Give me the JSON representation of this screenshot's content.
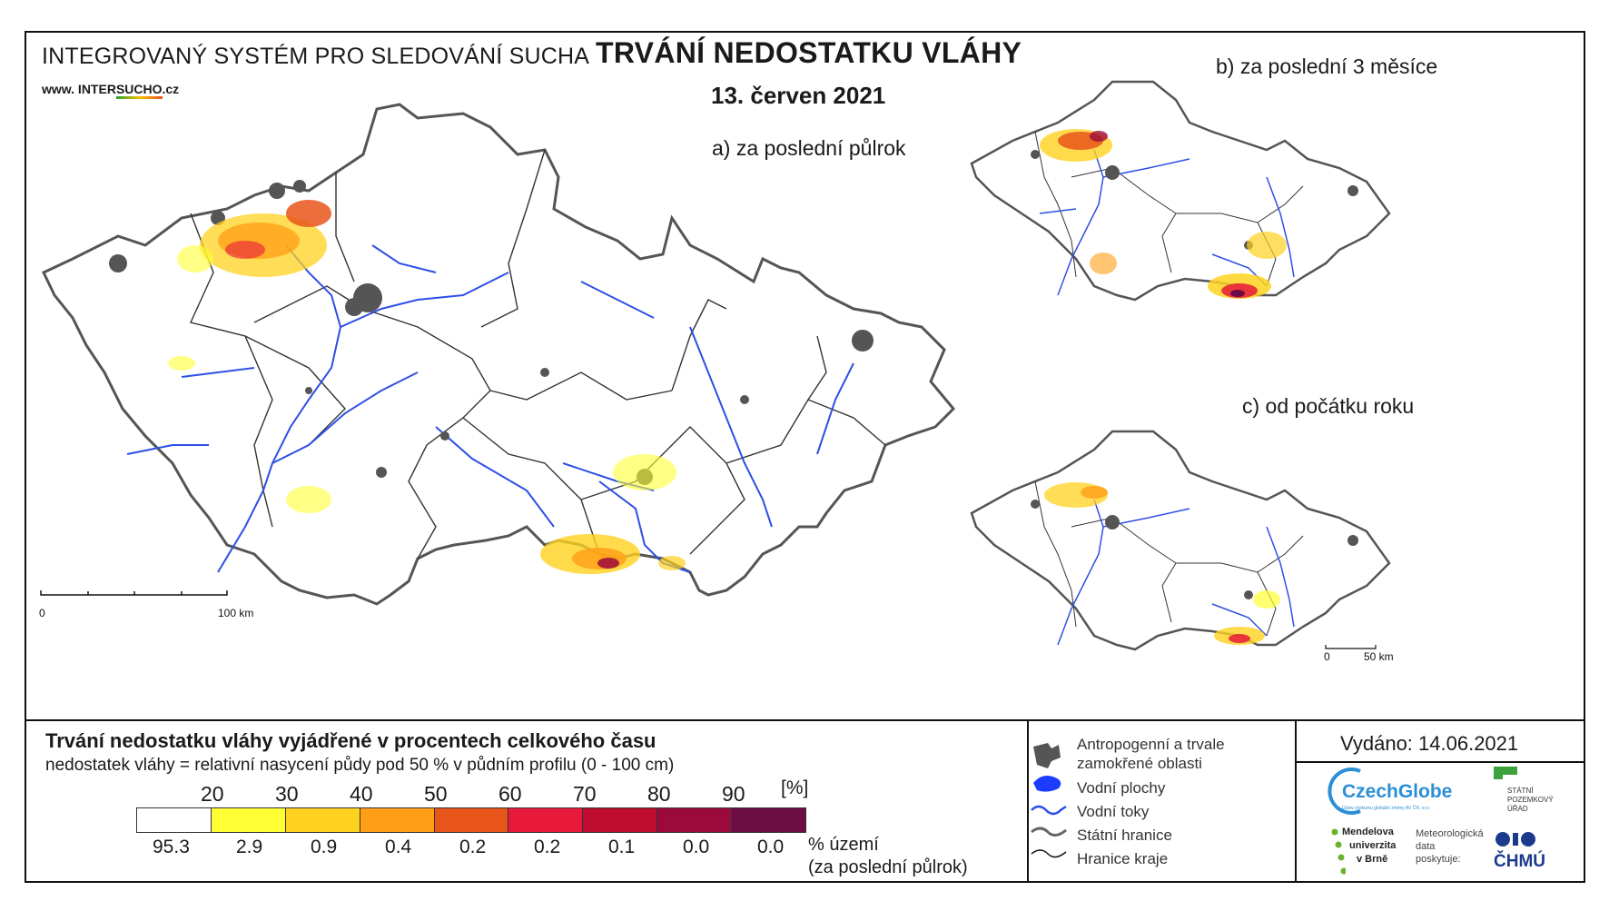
{
  "header": {
    "system_name": "INTEGROVANÝ SYSTÉM PRO SLEDOVÁNÍ SUCHA",
    "website_prefix": "www. INTER",
    "website_highlight": "SUCHO",
    "website_suffix": ".cz",
    "title": "TRVÁNÍ NEDOSTATKU VLÁHY",
    "date": "13. červen 2021"
  },
  "maps": {
    "a_label": "a) za poslední půlrok",
    "b_label": "b) za poslední 3 měsíce",
    "c_label": "c) od počátku roku",
    "scale_a_start": "0",
    "scale_a_end": "100 km",
    "scale_c_start": "0",
    "scale_c_end": "50 km"
  },
  "legend": {
    "title": "Trvání nedostatku vláhy vyjádřené v procentech celkového času",
    "subtitle": "nedostatek vláhy = relativní nasycení půdy pod 50 % v půdním profilu (0 - 100 cm)",
    "unit": "[%]",
    "ticks": [
      "20",
      "30",
      "40",
      "50",
      "60",
      "70",
      "80",
      "90"
    ],
    "colors": [
      "#ffffff",
      "#ffff33",
      "#ffd21f",
      "#ff9e14",
      "#e8551a",
      "#e8193a",
      "#c00c2e",
      "#9c0a3c",
      "#6e0c46"
    ],
    "shares": [
      "95.3",
      "2.9",
      "0.9",
      "0.4",
      "0.2",
      "0.2",
      "0.1",
      "0.0",
      "0.0"
    ],
    "share_label_1": "% území",
    "share_label_2": "(za poslední půlrok)"
  },
  "map_legend": {
    "anthropogenic_1": "Antropogenní a trvale",
    "anthropogenic_2": "zamokřené oblasti",
    "water_bodies": "Vodní plochy",
    "water_streams": "Vodní toky",
    "state_border": "Státní hranice",
    "region_border": "Hranice kraje"
  },
  "footer": {
    "issued": "Vydáno: 14.06.2021",
    "czechglobe": "CzechGlobe",
    "czechglobe_sub": "Ústav výzkumu globální změny AV ČR, v.v.i.",
    "spu_1": "STÁTNÍ",
    "spu_2": "POZEMKOVÝ",
    "spu_3": "ÚŘAD",
    "mendel_1": "Mendelova",
    "mendel_2": "univerzita",
    "mendel_3": "v Brně",
    "met_1": "Meteorologická",
    "met_2": "data",
    "met_3": "poskytuje:",
    "chmu": "ČHMÚ"
  },
  "icons": [
    "anthropogenic-area-icon",
    "water-body-icon",
    "stream-icon",
    "state-border-icon",
    "region-border-icon"
  ],
  "accent_colors": {
    "river": "#2e4fe6",
    "urban": "#555555",
    "border": "#333333"
  }
}
